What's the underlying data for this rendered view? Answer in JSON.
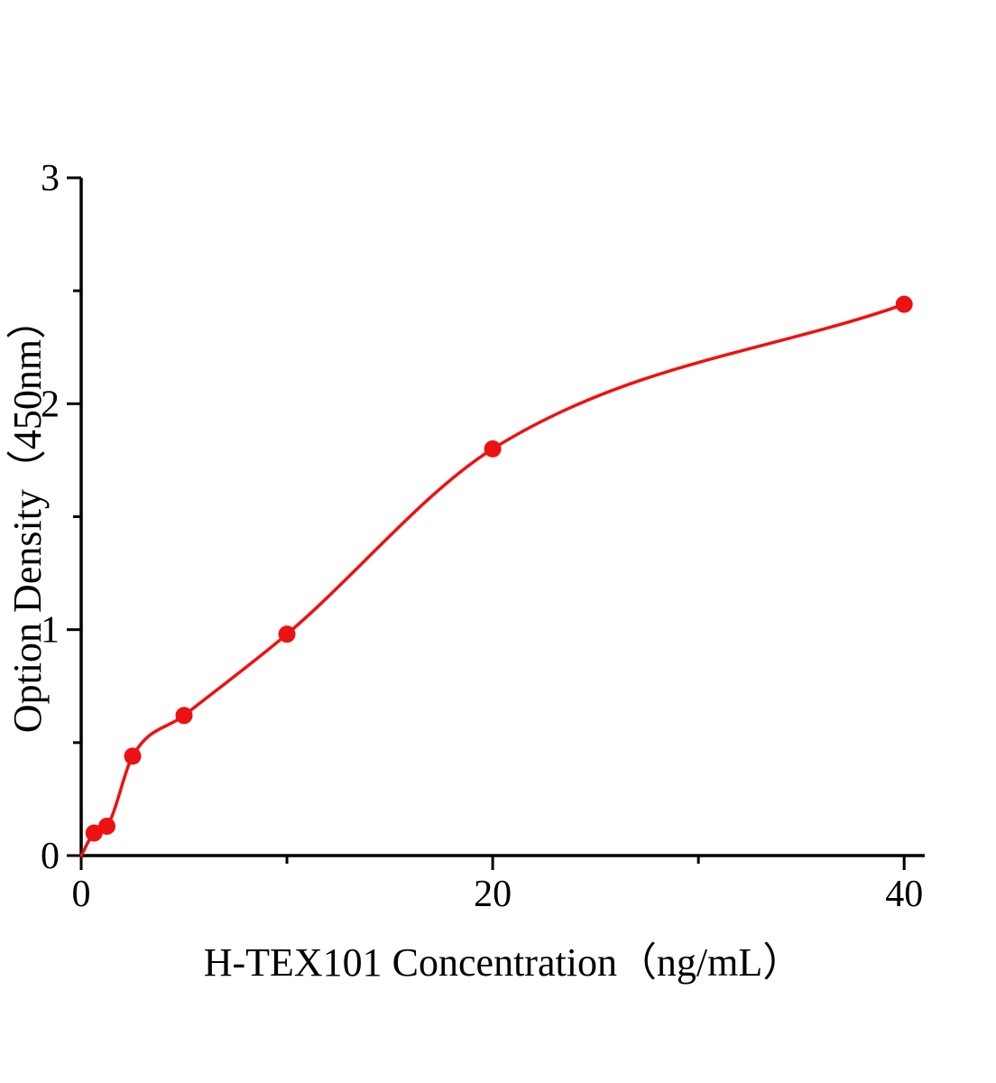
{
  "chart_data": {
    "type": "scatter",
    "title": "",
    "xlabel": "H-TEX101 Concentration（ng/mL）",
    "ylabel": "Option Density（450nm）",
    "x": [
      0.625,
      1.25,
      2.5,
      5,
      10,
      20,
      40
    ],
    "y": [
      0.1,
      0.13,
      0.44,
      0.62,
      0.98,
      1.8,
      2.44
    ],
    "curve_start": [
      0,
      0
    ],
    "xlim": [
      0,
      41
    ],
    "ylim": [
      0,
      3
    ],
    "x_major_ticks": [
      0,
      20,
      40
    ],
    "x_minor_ticks": [
      10,
      30
    ],
    "y_major_ticks": [
      0,
      1,
      2,
      3
    ],
    "y_minor_ticks": [
      0.5,
      1.5,
      2.5
    ],
    "accent_color": "#ee1111",
    "axis_color": "#000000",
    "grid": false,
    "legend": null
  }
}
